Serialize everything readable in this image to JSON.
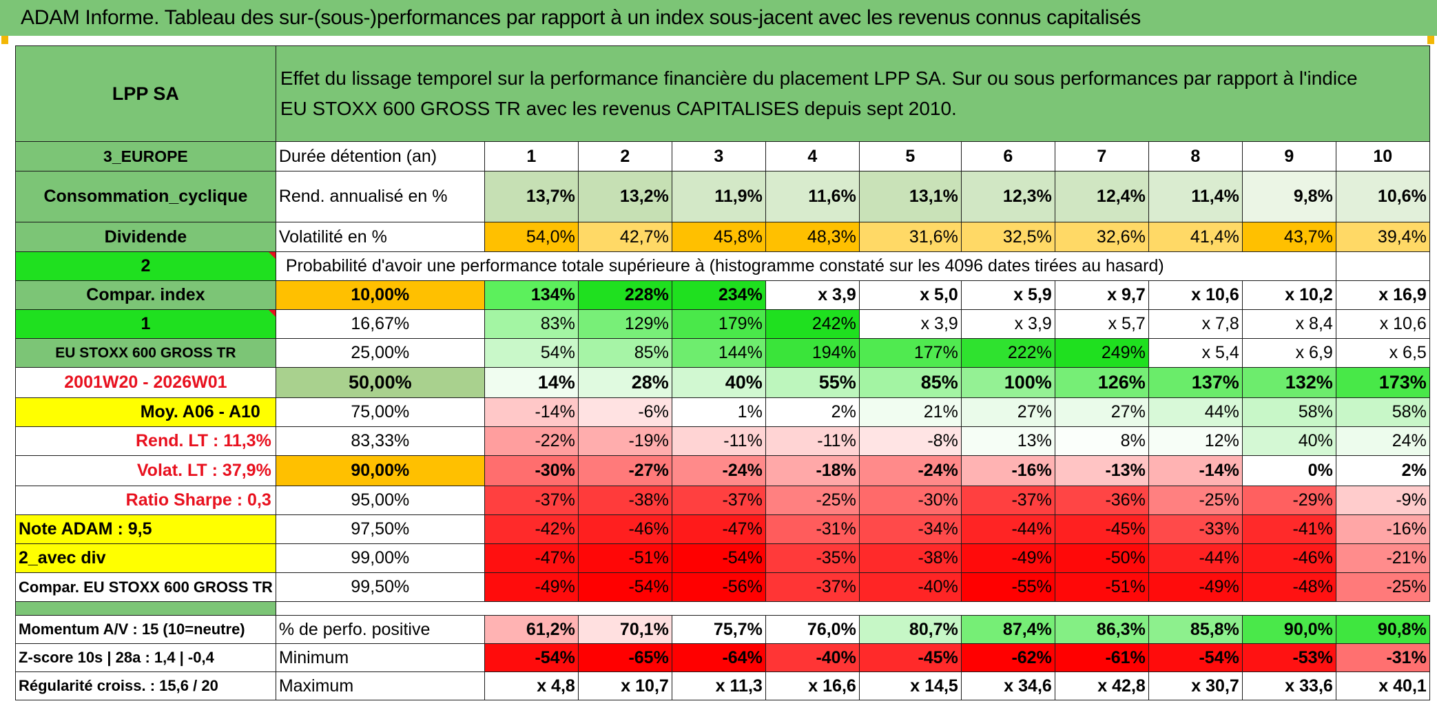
{
  "title": "ADAM Informe. Tableau des sur-(sous-)performances par rapport à un index sous-jacent avec les revenus connus capitalisés",
  "company": "LPP SA",
  "description_line1": "Effet du lissage temporel sur la performance financière du placement LPP SA. Sur ou sous performances par rapport à l'indice",
  "description_line2": "EU STOXX 600 GROSS TR avec les revenus CAPITALISES depuis sept 2010.",
  "left_labels": {
    "region": "3_EUROPE",
    "sector": "Consommation_cyclique",
    "dividend": "Dividende",
    "n2": "2",
    "compar_index": "Compar. index",
    "n1": "1",
    "index_name": "EU STOXX 600 GROSS TR",
    "period": "2001W20 - 2026W01",
    "moy": "Moy. A06 - A10",
    "rend_lt": "Rend. LT :   11,3%",
    "volat_lt": "Volat. LT :   37,9%",
    "sharpe": "Ratio Sharpe :    0,3",
    "note": "Note ADAM : 9,5",
    "avec_div": "2_avec div",
    "compar_full": "Compar. EU STOXX 600 GROSS TR",
    "momentum": "Momentum A/V : 15 (10=neutre)",
    "zscore": "Z-score 10s | 28a : 1,4 | -0,4",
    "regularite": "Régularité croiss. : 15,6 / 20"
  },
  "header_row": {
    "label": "Durée détention (an)",
    "years": [
      "1",
      "2",
      "3",
      "4",
      "5",
      "6",
      "7",
      "8",
      "9",
      "10"
    ]
  },
  "rendement": {
    "label": "Rend. annualisé en %",
    "values": [
      "13,7%",
      "13,2%",
      "11,9%",
      "11,6%",
      "13,1%",
      "12,3%",
      "12,4%",
      "11,4%",
      "9,8%",
      "10,6%"
    ]
  },
  "volatilite": {
    "label": "Volatilité en %",
    "values": [
      "54,0%",
      "42,7%",
      "45,8%",
      "48,3%",
      "31,6%",
      "32,5%",
      "32,6%",
      "41,4%",
      "43,7%",
      "39,4%"
    ]
  },
  "probability_caption": "Probabilité d'avoir une performance totale supérieure à (histogramme constaté sur les 4096 dates tirées au hasard)",
  "prob_rows": [
    {
      "pct": "10,00%",
      "values": [
        "134%",
        "228%",
        "234%",
        "x 3,9",
        "x 5,0",
        "x 5,9",
        "x 9,7",
        "x 10,6",
        "x 10,2",
        "x 16,9"
      ]
    },
    {
      "pct": "16,67%",
      "values": [
        "83%",
        "129%",
        "179%",
        "242%",
        "x 3,9",
        "x 3,9",
        "x 5,7",
        "x 7,8",
        "x 8,4",
        "x 10,6"
      ]
    },
    {
      "pct": "25,00%",
      "values": [
        "54%",
        "85%",
        "144%",
        "194%",
        "177%",
        "222%",
        "249%",
        "x 5,4",
        "x 6,9",
        "x 6,5"
      ]
    },
    {
      "pct": "50,00%",
      "values": [
        "14%",
        "28%",
        "40%",
        "55%",
        "85%",
        "100%",
        "126%",
        "137%",
        "132%",
        "173%"
      ]
    },
    {
      "pct": "75,00%",
      "values": [
        "-14%",
        "-6%",
        "1%",
        "2%",
        "21%",
        "27%",
        "27%",
        "44%",
        "58%",
        "58%"
      ]
    },
    {
      "pct": "83,33%",
      "values": [
        "-22%",
        "-19%",
        "-11%",
        "-11%",
        "-8%",
        "13%",
        "8%",
        "12%",
        "40%",
        "24%"
      ]
    },
    {
      "pct": "90,00%",
      "values": [
        "-30%",
        "-27%",
        "-24%",
        "-18%",
        "-24%",
        "-16%",
        "-13%",
        "-14%",
        "0%",
        "2%"
      ]
    },
    {
      "pct": "95,00%",
      "values": [
        "-37%",
        "-38%",
        "-37%",
        "-25%",
        "-30%",
        "-37%",
        "-36%",
        "-25%",
        "-29%",
        "-9%"
      ]
    },
    {
      "pct": "97,50%",
      "values": [
        "-42%",
        "-46%",
        "-47%",
        "-31%",
        "-34%",
        "-44%",
        "-45%",
        "-33%",
        "-41%",
        "-16%"
      ]
    },
    {
      "pct": "99,00%",
      "values": [
        "-47%",
        "-51%",
        "-54%",
        "-35%",
        "-38%",
        "-49%",
        "-50%",
        "-44%",
        "-46%",
        "-21%"
      ]
    },
    {
      "pct": "99,50%",
      "values": [
        "-49%",
        "-54%",
        "-56%",
        "-37%",
        "-40%",
        "-55%",
        "-51%",
        "-49%",
        "-48%",
        "-25%"
      ]
    }
  ],
  "positive": {
    "label": "% de perfo. positive",
    "values": [
      "61,2%",
      "70,1%",
      "75,7%",
      "76,0%",
      "80,7%",
      "87,4%",
      "86,3%",
      "85,8%",
      "90,0%",
      "90,8%"
    ]
  },
  "minimum": {
    "label": "Minimum",
    "values": [
      "-54%",
      "-65%",
      "-64%",
      "-40%",
      "-45%",
      "-62%",
      "-61%",
      "-54%",
      "-53%",
      "-31%"
    ]
  },
  "maximum": {
    "label": "Maximum",
    "values": [
      "x 4,8",
      "x 10,7",
      "x 11,3",
      "x 16,6",
      "x 14,5",
      "x 34,6",
      "x 42,8",
      "x 30,7",
      "x 33,6",
      "x 40,1"
    ]
  },
  "colors": {
    "header_green": "#7cc576",
    "mid_green": "#a9d18e",
    "bright_green": "#1fe01f",
    "yellow": "#ffff00",
    "orange": "#ffc000",
    "dark_red": "#e8101e"
  }
}
